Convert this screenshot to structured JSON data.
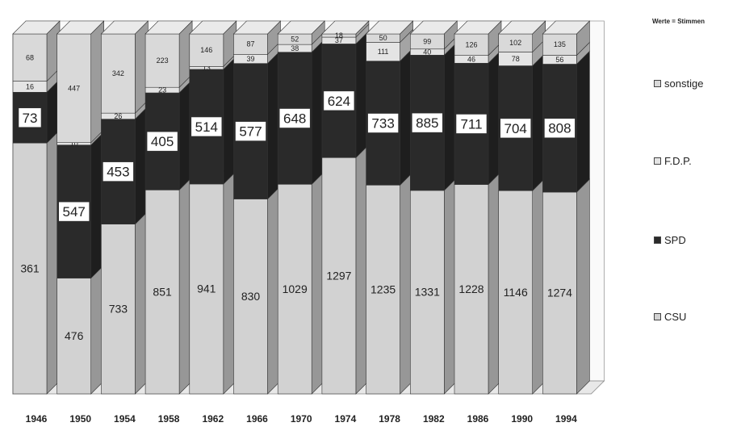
{
  "legend": {
    "note": "Werte = Stimmen",
    "items": [
      {
        "label": "sonstige",
        "color": "#d9d9d9"
      },
      {
        "label": "F.D.P.",
        "color": "#e4e4e4"
      },
      {
        "label": "SPD",
        "color": "#2a2a2a"
      },
      {
        "label": "CSU",
        "color": "#d2d2d2"
      }
    ]
  },
  "chart_data": {
    "type": "bar",
    "stacked": true,
    "style": "3d",
    "categories": [
      "1946",
      "1950",
      "1954",
      "1958",
      "1962",
      "1966",
      "1970",
      "1974",
      "1978",
      "1982",
      "1986",
      "1990",
      "1994"
    ],
    "series": [
      {
        "name": "CSU",
        "color": "#d2d2d2",
        "values": [
          361,
          476,
          733,
          851,
          941,
          830,
          1029,
          1297,
          1235,
          1331,
          1228,
          1146,
          1274
        ]
      },
      {
        "name": "SPD",
        "color": "#2a2a2a",
        "values": [
          73,
          547,
          453,
          405,
          514,
          577,
          648,
          624,
          733,
          885,
          711,
          704,
          808
        ]
      },
      {
        "name": "F.D.P.",
        "color": "#e4e4e4",
        "values": [
          16,
          10,
          26,
          23,
          13,
          39,
          38,
          37,
          111,
          40,
          46,
          78,
          56
        ]
      },
      {
        "name": "sonstige",
        "color": "#d9d9d9",
        "values": [
          68,
          447,
          342,
          223,
          146,
          87,
          52,
          18,
          50,
          99,
          126,
          102,
          135
        ]
      }
    ],
    "annotation": "Werte = Stimmen"
  }
}
